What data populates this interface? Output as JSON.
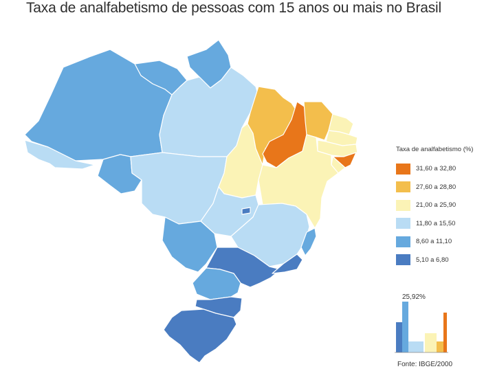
{
  "title": "Taxa de analfabetismo de pessoas com 15 anos ou mais no Brasil",
  "legend": {
    "title": "Taxa de analfabetismo (%)",
    "items": [
      {
        "label": "31,60 a 32,80",
        "color": "#e8761a"
      },
      {
        "label": "27,60 a 28,80",
        "color": "#f3be4c"
      },
      {
        "label": "21,00 a 25,90",
        "color": "#fbf3b6"
      },
      {
        "label": "11,80 a 15,50",
        "color": "#b9dcf4"
      },
      {
        "label": "8,60 a 11,10",
        "color": "#66a9de"
      },
      {
        "label": "5,10 a 6,80",
        "color": "#4a7cc1"
      }
    ]
  },
  "mini_chart": {
    "label": "25,92%",
    "bars": [
      {
        "class": "5,10 a 6,80",
        "color": "#4a7cc1"
      },
      {
        "class": "8,60 a 11,10",
        "color": "#66a9de"
      },
      {
        "class": "11,80 a 15,50",
        "color": "#b9dcf4"
      },
      {
        "class": "21,00 a 25,90",
        "color": "#fbf3b6"
      },
      {
        "class": "27,60 a 28,80",
        "color": "#f3be4c"
      },
      {
        "class": "31,60 a 32,80",
        "color": "#e8761a"
      }
    ]
  },
  "source": "Fonte: IBGE/2000",
  "regions": [
    {
      "name": "roraima",
      "class": "8,60 a 11,10"
    },
    {
      "name": "amapa",
      "class": "8,60 a 11,10"
    },
    {
      "name": "amazonas",
      "class": "8,60 a 11,10"
    },
    {
      "name": "para",
      "class": "11,80 a 15,50"
    },
    {
      "name": "acre",
      "class": "11,80 a 15,50"
    },
    {
      "name": "rondonia",
      "class": "8,60 a 11,10"
    },
    {
      "name": "mato-grosso",
      "class": "11,80 a 15,50"
    },
    {
      "name": "tocantins",
      "class": "21,00 a 25,90"
    },
    {
      "name": "maranhao",
      "class": "27,60 a 28,80"
    },
    {
      "name": "piaui",
      "class": "31,60 a 32,80"
    },
    {
      "name": "ceara",
      "class": "27,60 a 28,80"
    },
    {
      "name": "rio-grande-do-norte",
      "class": "21,00 a 25,90"
    },
    {
      "name": "paraiba",
      "class": "21,00 a 25,90"
    },
    {
      "name": "pernambuco",
      "class": "21,00 a 25,90"
    },
    {
      "name": "alagoas",
      "class": "31,60 a 32,80"
    },
    {
      "name": "sergipe",
      "class": "21,00 a 25,90"
    },
    {
      "name": "bahia",
      "class": "21,00 a 25,90"
    },
    {
      "name": "goias",
      "class": "11,80 a 15,50"
    },
    {
      "name": "distrito-federal",
      "class": "5,10 a 6,80"
    },
    {
      "name": "minas-gerais",
      "class": "11,80 a 15,50"
    },
    {
      "name": "espirito-santo",
      "class": "8,60 a 11,10"
    },
    {
      "name": "mato-grosso-do-sul",
      "class": "8,60 a 11,10"
    },
    {
      "name": "sao-paulo",
      "class": "5,10 a 6,80"
    },
    {
      "name": "rio-de-janeiro",
      "class": "5,10 a 6,80"
    },
    {
      "name": "parana",
      "class": "8,60 a 11,10"
    },
    {
      "name": "santa-catarina",
      "class": "5,10 a 6,80"
    },
    {
      "name": "rio-grande-do-sul",
      "class": "5,10 a 6,80"
    }
  ]
}
